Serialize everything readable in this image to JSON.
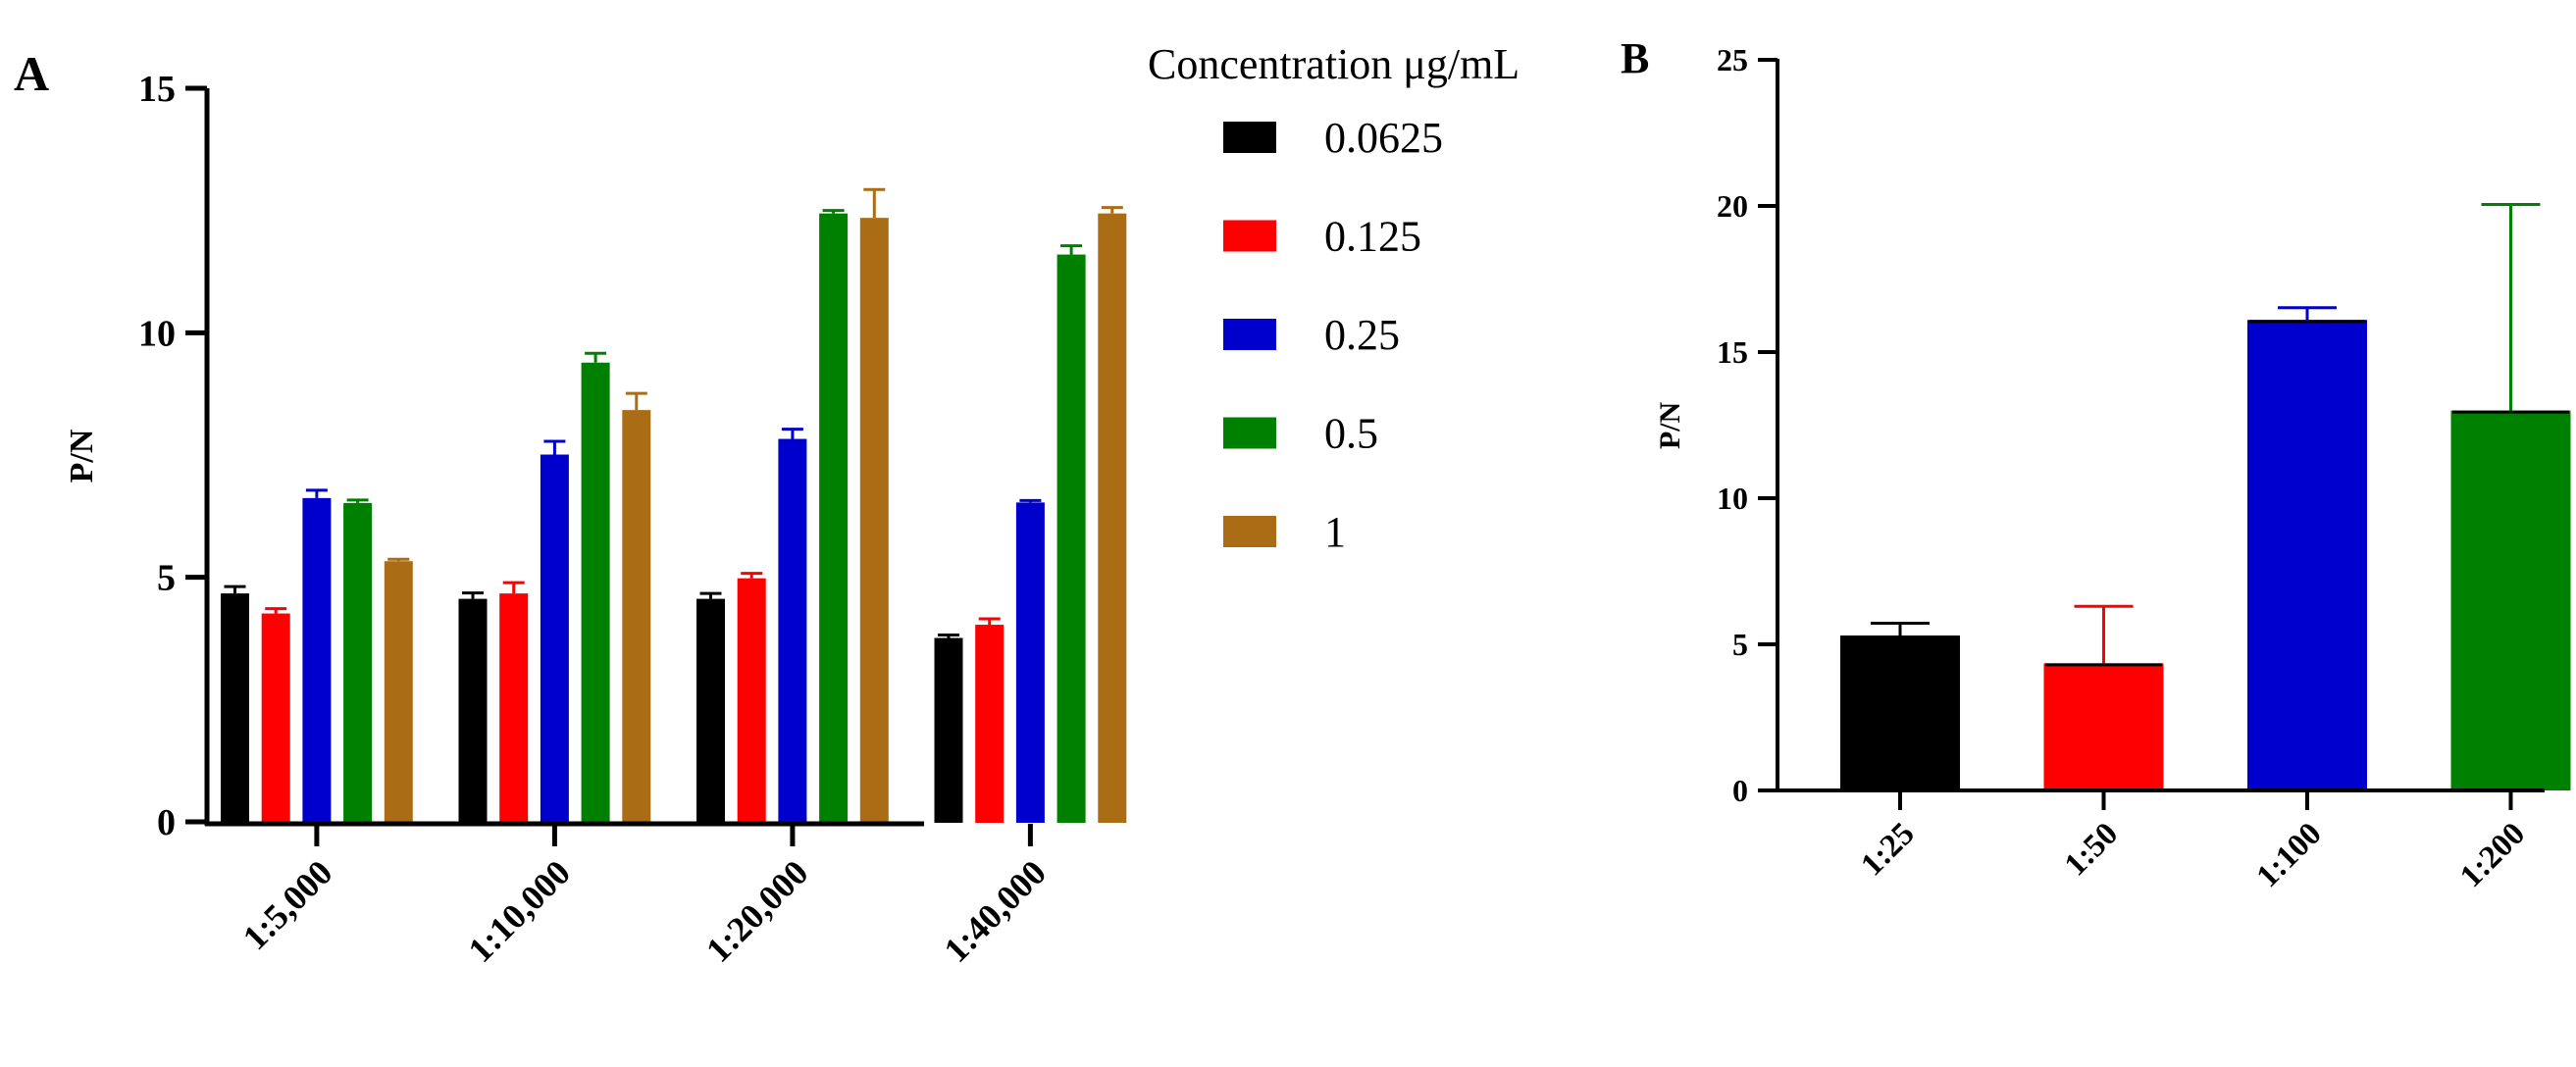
{
  "figure": {
    "panel_a_letter": "A",
    "panel_b_letter": "B"
  },
  "chart_data": [
    {
      "panel": "A",
      "type": "bar",
      "title": "",
      "xlabel": "",
      "ylabel": "P/N",
      "ylim": [
        0,
        15
      ],
      "yticks": [
        0,
        5,
        10,
        15
      ],
      "grid": false,
      "legend_position": "right",
      "legend_title": "Concentration μg/mL",
      "categories": [
        "1:5,000",
        "1:10,000",
        "1:20,000",
        "1:40,000"
      ],
      "series": [
        {
          "name": "0.0625",
          "color": "#000000",
          "values": [
            4.67,
            4.56,
            4.56,
            3.76
          ],
          "errors": [
            0.14,
            0.12,
            0.11,
            0.06
          ]
        },
        {
          "name": "0.125",
          "color": "#ff0000",
          "values": [
            4.26,
            4.67,
            4.98,
            4.03
          ],
          "errors": [
            0.1,
            0.22,
            0.1,
            0.12
          ]
        },
        {
          "name": "0.25",
          "color": "#0000cc",
          "values": [
            6.62,
            7.51,
            7.83,
            6.53
          ],
          "errors": [
            0.16,
            0.27,
            0.2,
            0.04
          ]
        },
        {
          "name": "0.5",
          "color": "#008000",
          "values": [
            6.52,
            9.39,
            12.44,
            11.6
          ],
          "errors": [
            0.06,
            0.19,
            0.06,
            0.18
          ]
        },
        {
          "name": "1",
          "color": "#aa6d16",
          "values": [
            5.33,
            8.42,
            12.35,
            12.44
          ],
          "errors": [
            0.04,
            0.34,
            0.58,
            0.12
          ]
        }
      ]
    },
    {
      "panel": "B",
      "type": "bar",
      "title": "",
      "xlabel": "",
      "ylabel": "P/N",
      "ylim": [
        0,
        25
      ],
      "yticks": [
        0,
        5,
        10,
        15,
        20,
        25
      ],
      "grid": false,
      "categories": [
        "1:25",
        "1:50",
        "1:100",
        "1:200"
      ],
      "values": [
        5.3,
        4.35,
        16.1,
        13.0
      ],
      "errors": [
        0.42,
        1.95,
        0.42,
        7.05
      ],
      "colors": [
        "#000000",
        "#ff0000",
        "#0000cc",
        "#008000"
      ]
    }
  ]
}
